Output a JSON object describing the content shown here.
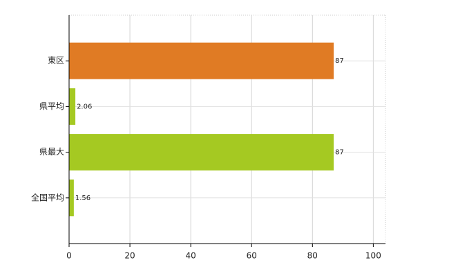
{
  "chart_data": {
    "type": "bar",
    "orientation": "horizontal",
    "categories": [
      "東区",
      "県平均",
      "県最大",
      "全国平均"
    ],
    "values": [
      87,
      2.06,
      87,
      1.56
    ],
    "colors": [
      "#e07b24",
      "#a5c922",
      "#a5c922",
      "#a5c922"
    ],
    "xlim": [
      0,
      104
    ],
    "xticks": [
      0,
      20,
      40,
      60,
      80,
      100
    ],
    "grid": true
  }
}
